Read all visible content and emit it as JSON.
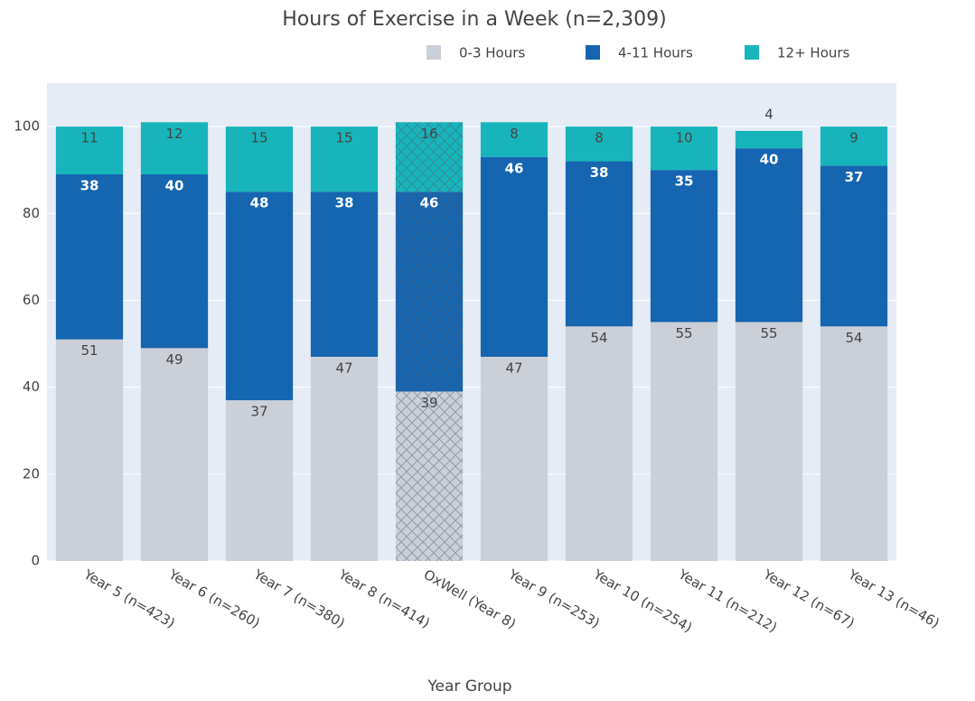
{
  "chart_data": {
    "type": "stacked_bar",
    "title": "Hours of Exercise in a Week (n=2,309)",
    "x_label": "Year Group",
    "categories": [
      "Year 5 (n=423)",
      "Year 6 (n=260)",
      "Year 7 (n=380)",
      "Year 8 (n=414)",
      "OxWell (Year 8)",
      "Year 9 (n=253)",
      "Year 10 (n=254)",
      "Year 11 (n=212)",
      "Year 12 (n=67)",
      "Year 13 (n=46)"
    ],
    "series": [
      {
        "name": "0-3 Hours",
        "color": "#cbd0d8",
        "label_color": "#444444",
        "values": [
          51,
          49,
          37,
          47,
          39,
          47,
          54,
          55,
          55,
          54
        ]
      },
      {
        "name": "4-11 Hours",
        "color": "#1565b0",
        "label_color": "#ffffff",
        "values": [
          38,
          40,
          48,
          38,
          46,
          46,
          38,
          35,
          40,
          37
        ]
      },
      {
        "name": "12+ Hours",
        "color": "#17b5bb",
        "label_color": "#444444",
        "values": [
          11,
          12,
          15,
          15,
          16,
          8,
          8,
          10,
          4,
          9
        ]
      }
    ],
    "hatched_category": 4,
    "ylim": [
      0,
      110
    ],
    "yticks": [
      0,
      20,
      40,
      60,
      80,
      100
    ],
    "grid": true,
    "legend": "top-right"
  }
}
